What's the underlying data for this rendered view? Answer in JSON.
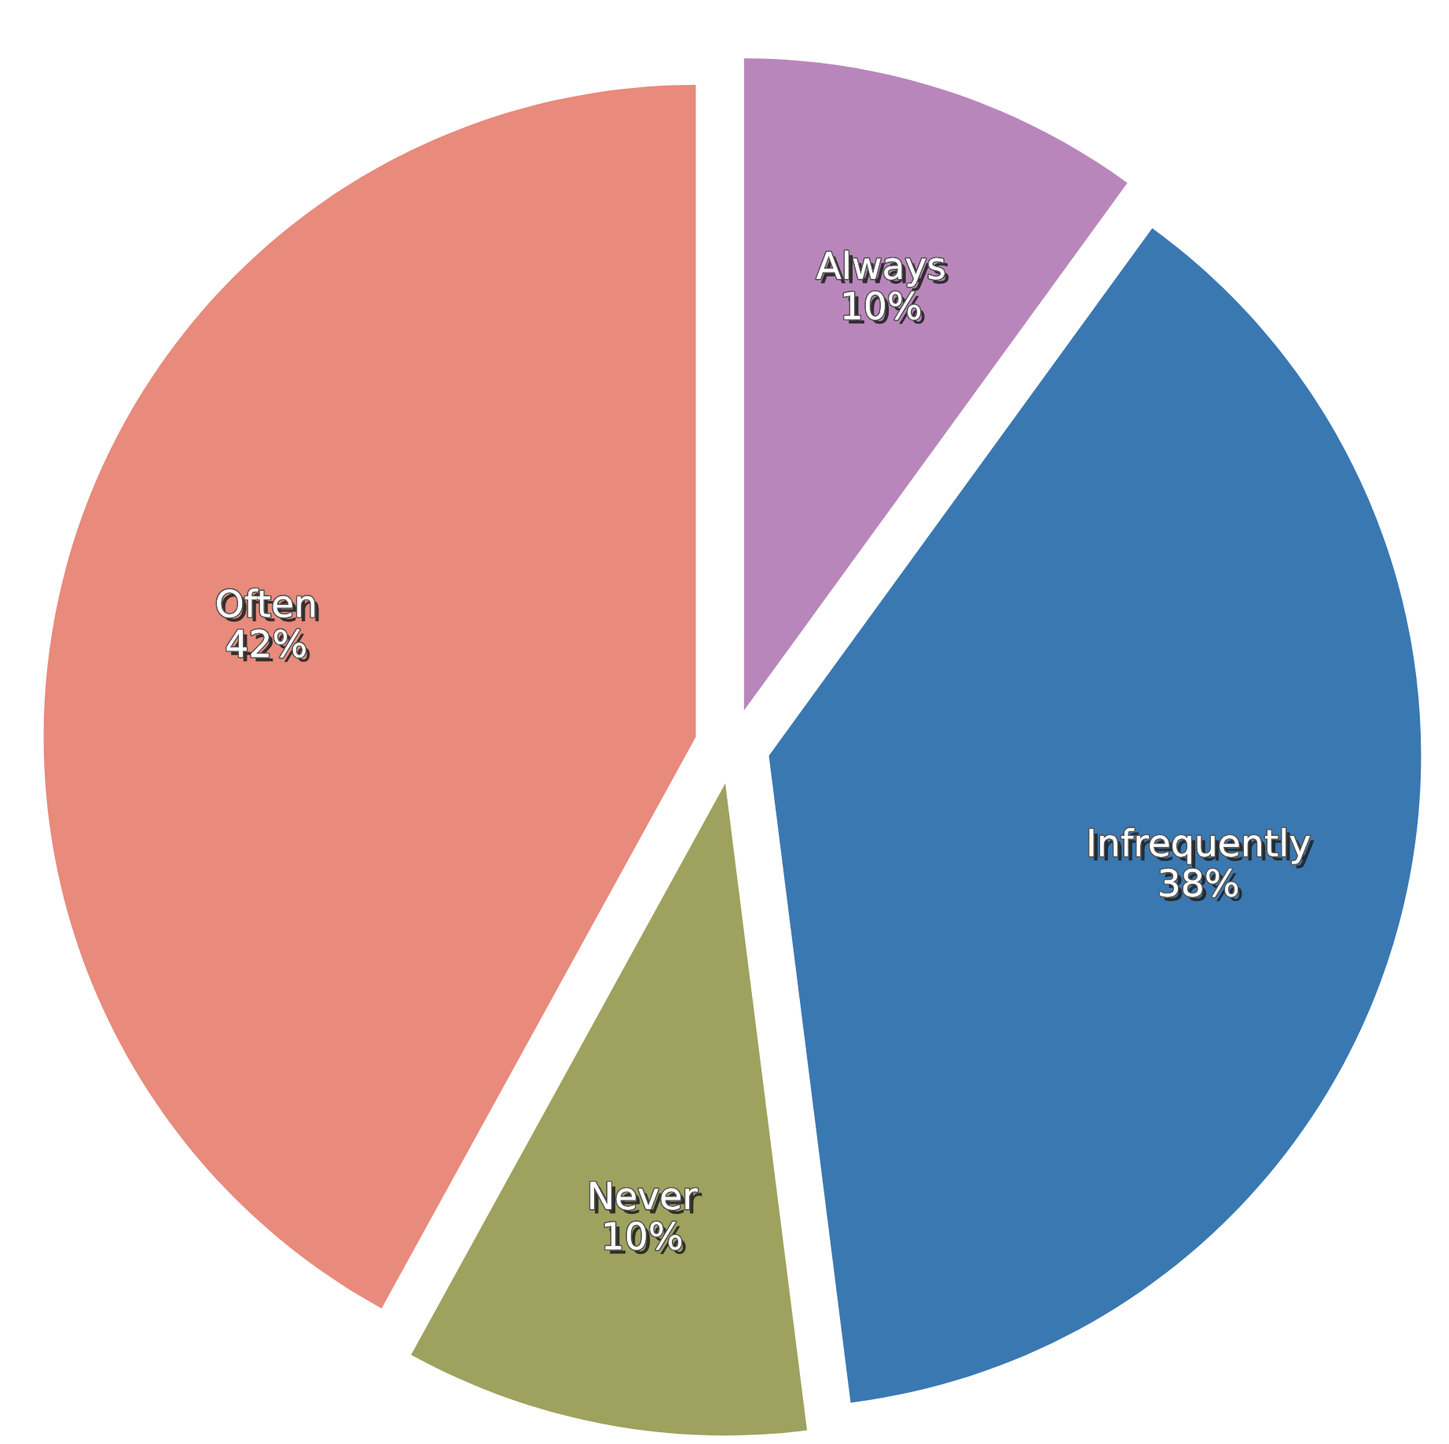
{
  "chart_data": {
    "type": "pie",
    "categories": [
      "Always",
      "Infrequently",
      "Never",
      "Often"
    ],
    "values": [
      10,
      38,
      10,
      42
    ],
    "colors": [
      "#b986bb",
      "#3a78b2",
      "#9ea25e",
      "#e88a7c"
    ],
    "value_labels": [
      "10%",
      "38%",
      "10%",
      "42%"
    ]
  }
}
